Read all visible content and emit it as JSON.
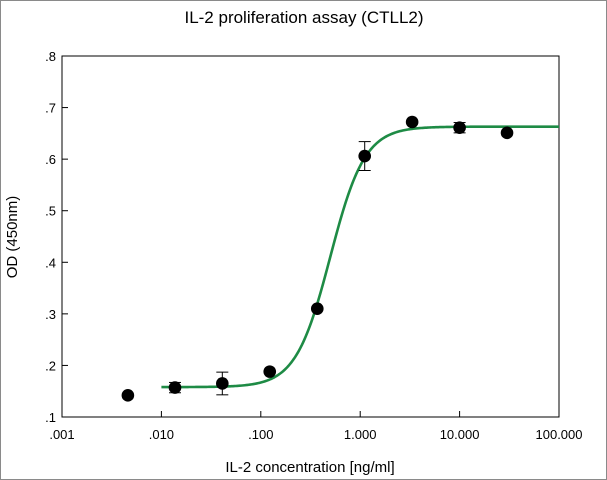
{
  "chart_data": {
    "type": "scatter",
    "title": "IL-2 proliferation assay (CTLL2)",
    "xlabel": "IL-2 concentration [ng/ml]",
    "ylabel": "OD (450nm)",
    "x_scale": "log",
    "xlim": [
      0.001,
      100
    ],
    "ylim": [
      0.1,
      0.8
    ],
    "grid": false,
    "x_ticks": [
      {
        "value": 0.001,
        "label": ".001"
      },
      {
        "value": 0.01,
        "label": ".010"
      },
      {
        "value": 0.1,
        "label": ".100"
      },
      {
        "value": 1,
        "label": "1.000"
      },
      {
        "value": 10,
        "label": "10.000"
      },
      {
        "value": 100,
        "label": "100.000"
      }
    ],
    "y_ticks": [
      {
        "value": 0.1,
        "label": ".1"
      },
      {
        "value": 0.2,
        "label": ".2"
      },
      {
        "value": 0.3,
        "label": ".3"
      },
      {
        "value": 0.4,
        "label": ".4"
      },
      {
        "value": 0.5,
        "label": ".5"
      },
      {
        "value": 0.6,
        "label": ".6"
      },
      {
        "value": 0.7,
        "label": ".7"
      },
      {
        "value": 0.8,
        "label": ".8"
      }
    ],
    "points": [
      {
        "x": 0.0046,
        "y": 0.142,
        "err": 0
      },
      {
        "x": 0.0137,
        "y": 0.157,
        "err": 0.01
      },
      {
        "x": 0.041,
        "y": 0.165,
        "err": 0.022
      },
      {
        "x": 0.123,
        "y": 0.188,
        "err": 0
      },
      {
        "x": 0.37,
        "y": 0.31,
        "err": 0
      },
      {
        "x": 1.11,
        "y": 0.606,
        "err": 0.028
      },
      {
        "x": 3.33,
        "y": 0.672,
        "err": 0
      },
      {
        "x": 10,
        "y": 0.661,
        "err": 0.01
      },
      {
        "x": 30,
        "y": 0.651,
        "err": 0
      }
    ],
    "fit": {
      "model": "4-parameter logistic",
      "bottom": 0.158,
      "top": 0.663,
      "ec50": 0.5,
      "hill": 2.5,
      "color": "#1e8b45"
    },
    "marker_color": "#000000"
  }
}
